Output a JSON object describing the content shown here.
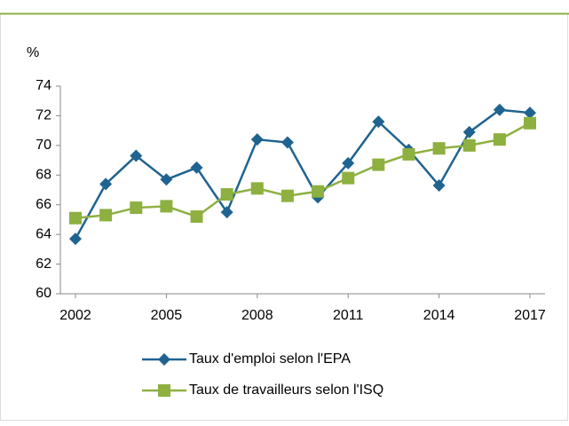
{
  "chart_data": {
    "type": "line",
    "y_label": "%",
    "x": [
      2002,
      2003,
      2004,
      2005,
      2006,
      2007,
      2008,
      2009,
      2010,
      2011,
      2012,
      2013,
      2014,
      2015,
      2016,
      2017
    ],
    "series": [
      {
        "name": "Taux d'emploi selon l'EPA",
        "color": "#1f6391",
        "marker": "diamond",
        "values": [
          63.7,
          67.4,
          69.3,
          67.7,
          68.5,
          65.5,
          70.4,
          70.2,
          66.5,
          68.8,
          71.6,
          69.7,
          67.3,
          70.9,
          72.4,
          72.2
        ]
      },
      {
        "name": "Taux de travailleurs selon l'ISQ",
        "color": "#8db040",
        "marker": "square",
        "values": [
          65.1,
          65.3,
          65.8,
          65.9,
          65.2,
          66.7,
          67.1,
          66.6,
          66.9,
          67.8,
          68.7,
          69.4,
          69.8,
          70.0,
          70.4,
          71.5
        ]
      }
    ],
    "xlim": [
      2002,
      2017
    ],
    "xticks": [
      2002,
      2005,
      2008,
      2011,
      2014,
      2017
    ],
    "ylim": [
      60,
      74
    ],
    "yticks": [
      60,
      62,
      64,
      66,
      68,
      70,
      72,
      74
    ],
    "grid": false,
    "legend": "bottom"
  }
}
